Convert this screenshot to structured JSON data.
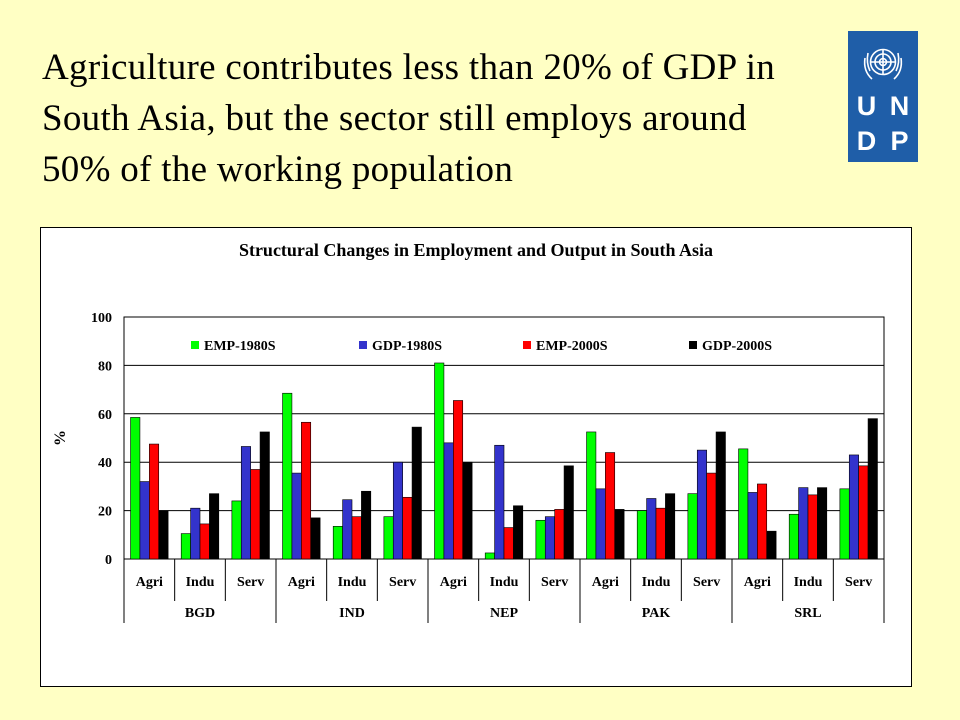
{
  "headline": {
    "lines": [
      "Agriculture contributes less than 20% of GDP in",
      "South Asia, but the sector still employs around",
      "50% of the working population"
    ]
  },
  "logo": {
    "letters": [
      "U",
      "N",
      "D",
      "P"
    ],
    "icon": "un-emblem-icon",
    "color": "#1f5ea8"
  },
  "chart_data": {
    "type": "bar",
    "title": "Structural Changes in Employment and Output in South Asia",
    "ylabel": "%",
    "xlabel": "",
    "ylim": [
      0,
      100
    ],
    "yticks": [
      0,
      20,
      40,
      60,
      80,
      100
    ],
    "grid": true,
    "legend_position": "top",
    "categories": [
      "Agri",
      "Indu",
      "Serv",
      "Agri",
      "Indu",
      "Serv",
      "Agri",
      "Indu",
      "Serv",
      "Agri",
      "Indu",
      "Serv",
      "Agri",
      "Indu",
      "Serv"
    ],
    "groups": [
      {
        "label": "BGD",
        "span": 3
      },
      {
        "label": "IND",
        "span": 3
      },
      {
        "label": "NEP",
        "span": 3
      },
      {
        "label": "PAK",
        "span": 3
      },
      {
        "label": "SRL",
        "span": 3
      }
    ],
    "series": [
      {
        "name": "EMP-1980S",
        "color": "#00ff00",
        "values": [
          58.5,
          10.5,
          24,
          68.5,
          13.5,
          17.5,
          81,
          2.5,
          16,
          52.5,
          20,
          27,
          45.5,
          18.5,
          29
        ]
      },
      {
        "name": "GDP-1980S",
        "color": "#3333cc",
        "values": [
          32,
          21,
          46.5,
          35.5,
          24.5,
          40,
          48,
          47,
          17.5,
          29,
          25,
          45,
          27.5,
          29.5,
          43
        ]
      },
      {
        "name": "EMP-2000S",
        "color": "#ff0000",
        "values": [
          47.5,
          14.5,
          37,
          56.5,
          17.5,
          25.5,
          65.5,
          13,
          20.5,
          44,
          21,
          35.5,
          31,
          26.5,
          38.5
        ]
      },
      {
        "name": "GDP-2000S",
        "color": "#000000",
        "values": [
          20,
          27,
          52.5,
          17,
          28,
          54.5,
          40,
          22,
          38.5,
          20.5,
          27,
          52.5,
          11.5,
          29.5,
          58
        ]
      }
    ]
  }
}
